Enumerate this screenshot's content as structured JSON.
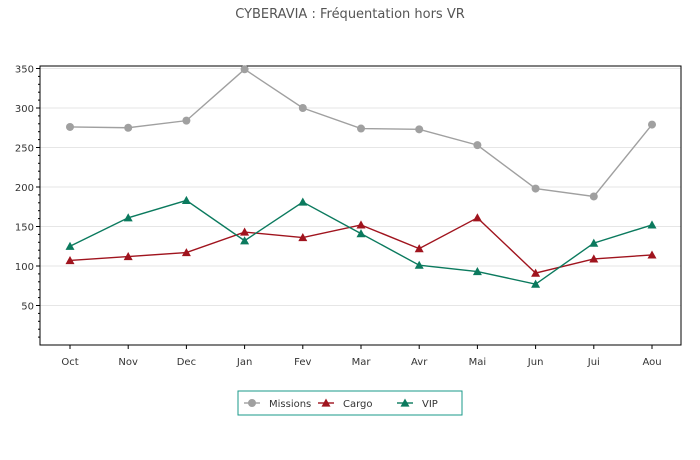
{
  "chart_data": {
    "type": "line",
    "title": "CYBERAVIA : Fréquentation hors VR",
    "xlabel": "",
    "ylabel": "",
    "categories": [
      "Oct",
      "Nov",
      "Dec",
      "Jan",
      "Fev",
      "Mar",
      "Avr",
      "Mai",
      "Jun",
      "Jui",
      "Aou"
    ],
    "ylim": [
      0,
      350
    ],
    "yticks": [
      50,
      100,
      150,
      200,
      250,
      300,
      350
    ],
    "grid": true,
    "legend_position": "bottom",
    "series": [
      {
        "name": "Missions",
        "color": "#a0a0a0",
        "marker": "diamond",
        "values": [
          276,
          275,
          284,
          349,
          300,
          274,
          273,
          253,
          198,
          188,
          279
        ]
      },
      {
        "name": "Cargo",
        "color": "#a0141e",
        "marker": "triangle",
        "values": [
          107,
          112,
          117,
          143,
          136,
          152,
          122,
          161,
          91,
          109,
          114
        ]
      },
      {
        "name": "VIP",
        "color": "#0b7a5e",
        "marker": "triangle",
        "values": [
          125,
          161,
          183,
          132,
          181,
          141,
          101,
          93,
          77,
          129,
          152
        ]
      }
    ]
  }
}
